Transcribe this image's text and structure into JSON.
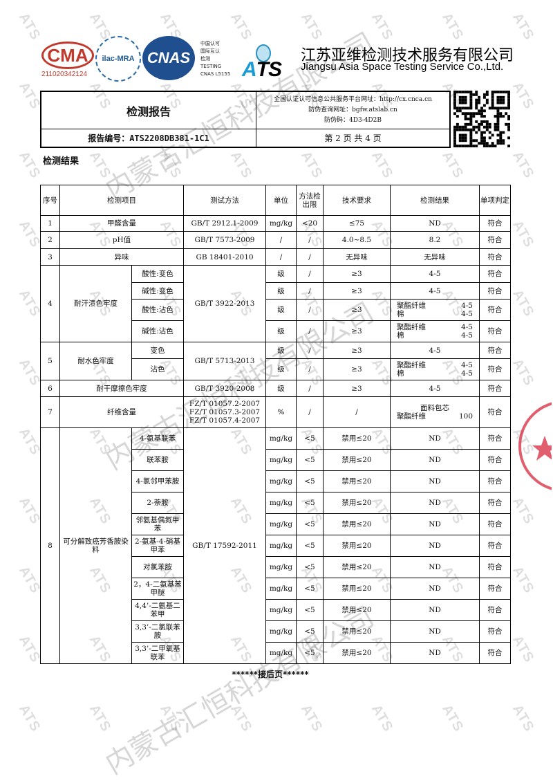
{
  "header": {
    "cma_number": "211020342124",
    "cnas_caption": [
      "中国认可",
      "国际互认",
      "检测",
      "TESTING",
      "CNAS L5155"
    ],
    "company_cn": "江苏亚维检测技术服务有限公司",
    "company_en": "Jiangsu Asia Space Testing Service Co.,Ltd.",
    "report_title": "检测报告",
    "report_number": "报告编号：ATS2208DB381-1C1",
    "platform_url": "全国认证认可信息公共服务平台网址：http://cx.cnca.cn",
    "verify_url": "防伪查询网址：bgfw.atslab.cn",
    "verify_code": "防伪码：4D3-4D2B",
    "page_info": "第 2 页 共 4 页"
  },
  "logos": {
    "cma": "CMA",
    "ilac": "ilac-MRA",
    "cnas": "CNAS",
    "ats": "ATS"
  },
  "watermark": {
    "company": "内蒙古汇恒科技有限公司",
    "mark": "ATS"
  },
  "section_title": "检测结果",
  "table": {
    "headers": [
      "序号",
      "检测项目",
      "测试方法",
      "单位",
      "方法检出限",
      "技术要求",
      "检测结果",
      "单项判定"
    ],
    "groups": [
      {
        "no": "1",
        "item": "甲醛含量",
        "method": [
          "GB/T 2912.1-2009"
        ],
        "rows": [
          {
            "unit": "mg/kg",
            "limit": "<20",
            "req": "≤75",
            "result": "ND",
            "verdict": "符合"
          }
        ]
      },
      {
        "no": "2",
        "item": "pH值",
        "method": [
          "GB/T 7573-2009"
        ],
        "rows": [
          {
            "unit": "/",
            "limit": "/",
            "req": "4.0~8.5",
            "result": "8.2",
            "verdict": "符合"
          }
        ]
      },
      {
        "no": "3",
        "item": "异味",
        "method": [
          "GB 18401-2010"
        ],
        "rows": [
          {
            "unit": "/",
            "limit": "/",
            "req": "无异味",
            "result": "无异味",
            "verdict": "符合"
          }
        ]
      },
      {
        "no": "4",
        "item": "耐汗渍色牢度",
        "method": [
          "GB/T 3922-2013"
        ],
        "rows": [
          {
            "sub": "酸性:变色",
            "unit": "级",
            "limit": "/",
            "req": "≥3",
            "result": "4-5",
            "verdict": "符合"
          },
          {
            "sub": "碱性:变色",
            "unit": "级",
            "limit": "/",
            "req": "≥3",
            "result": "4-5",
            "verdict": "符合"
          },
          {
            "sub": "酸性:沾色",
            "unit": "级",
            "limit": "/",
            "req": "≥3",
            "result_pairs": [
              [
                "聚酯纤维",
                "4-5"
              ],
              [
                "棉",
                "4-5"
              ]
            ],
            "verdict": "符合"
          },
          {
            "sub": "碱性:沾色",
            "unit": "级",
            "limit": "/",
            "req": "≥3",
            "result_pairs": [
              [
                "聚酯纤维",
                "4-5"
              ],
              [
                "棉",
                "4-5"
              ]
            ],
            "verdict": "符合"
          }
        ]
      },
      {
        "no": "5",
        "item": "耐水色牢度",
        "method": [
          "GB/T 5713-2013"
        ],
        "rows": [
          {
            "sub": "变色",
            "unit": "级",
            "limit": "/",
            "req": "≥3",
            "result": "4-5",
            "verdict": "符合"
          },
          {
            "sub": "沾色",
            "unit": "级",
            "limit": "/",
            "req": "≥3",
            "result_pairs": [
              [
                "聚酯纤维",
                "4-5"
              ],
              [
                "棉",
                "4-5"
              ]
            ],
            "verdict": "符合"
          }
        ]
      },
      {
        "no": "6",
        "item": "耐干摩擦色牢度",
        "method": [
          "GB/T 3920-2008"
        ],
        "rows": [
          {
            "unit": "级",
            "limit": "/",
            "req": "≥3",
            "result": "4-5",
            "verdict": "符合"
          }
        ]
      },
      {
        "no": "7",
        "item": "纤维含量",
        "method": [
          "FZ/T 01057.2-2007",
          "FZ/T 01057.3-2007",
          "FZ/T 01057.4-2007"
        ],
        "rows": [
          {
            "unit": "%",
            "limit": "/",
            "req": "/",
            "result_title": "面料包芯",
            "result_pairs": [
              [
                "聚酯纤维",
                "100"
              ]
            ],
            "verdict": "符合"
          }
        ]
      },
      {
        "no": "8",
        "item": "可分解致癌芳香胺染料",
        "method": [
          "GB/T 17592-2011"
        ],
        "rows": [
          {
            "sub": "4-氨基联苯",
            "unit": "mg/kg",
            "limit": "<5",
            "req": "禁用≤20",
            "result": "ND",
            "verdict": "符合"
          },
          {
            "sub": "联苯胺",
            "unit": "mg/kg",
            "limit": "<5",
            "req": "禁用≤20",
            "result": "ND",
            "verdict": "符合"
          },
          {
            "sub": "4-氯邻甲苯胺",
            "unit": "mg/kg",
            "limit": "<5",
            "req": "禁用≤20",
            "result": "ND",
            "verdict": "符合"
          },
          {
            "sub": "2-萘胺",
            "unit": "mg/kg",
            "limit": "<5",
            "req": "禁用≤20",
            "result": "ND",
            "verdict": "符合"
          },
          {
            "sub": "邻氨基偶氮甲苯",
            "unit": "mg/kg",
            "limit": "<5",
            "req": "禁用≤20",
            "result": "ND",
            "verdict": "符合"
          },
          {
            "sub": "2-氨基-4-硝基甲苯",
            "unit": "mg/kg",
            "limit": "<5",
            "req": "禁用≤20",
            "result": "ND",
            "verdict": "符合"
          },
          {
            "sub": "对氯苯胺",
            "unit": "mg/kg",
            "limit": "<5",
            "req": "禁用≤20",
            "result": "ND",
            "verdict": "符合"
          },
          {
            "sub": "2，4-二氨基苯甲醚",
            "unit": "mg/kg",
            "limit": "<5",
            "req": "禁用≤20",
            "result": "ND",
            "verdict": "符合"
          },
          {
            "sub": "4,4’-二氨基二苯甲",
            "unit": "mg/kg",
            "limit": "<5",
            "req": "禁用≤20",
            "result": "ND",
            "verdict": "符合"
          },
          {
            "sub": "3,3’-二氯联苯胺",
            "unit": "mg/kg",
            "limit": "<5",
            "req": "禁用≤20",
            "result": "ND",
            "verdict": "符合"
          },
          {
            "sub": "3,3’-二甲氧基联苯",
            "unit": "mg/kg",
            "limit": "<5",
            "req": "禁用≤20",
            "result": "ND",
            "verdict": "符合"
          }
        ]
      }
    ]
  },
  "footer": "******接后页******"
}
